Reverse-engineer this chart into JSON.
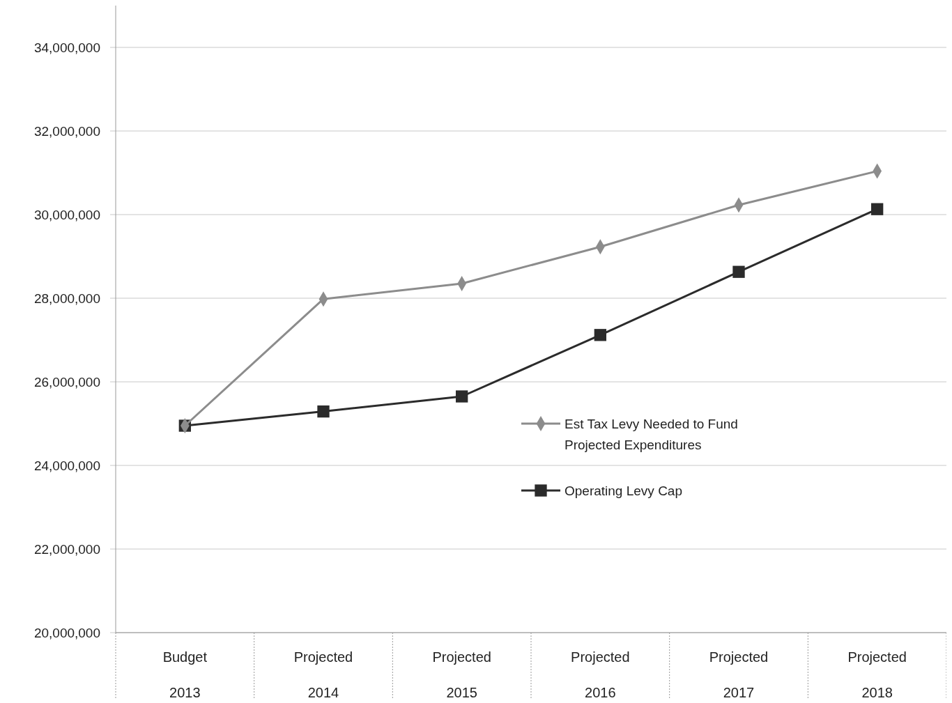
{
  "chart_data": {
    "type": "line",
    "categories": [
      "Budget 2013",
      "Projected 2014",
      "Projected 2015",
      "Projected 2016",
      "Projected 2017",
      "Projected 2018"
    ],
    "series": [
      {
        "name": "Est Tax Levy Needed  to Fund Projected Expenditures",
        "color": "#8c8c8c",
        "marker": "diamond",
        "values": [
          24950000,
          27980000,
          28350000,
          29230000,
          30230000,
          31040000
        ]
      },
      {
        "name": "Operating Levy Cap",
        "color": "#2b2b2b",
        "marker": "square",
        "values": [
          24950000,
          25290000,
          25650000,
          27120000,
          28630000,
          30130000
        ]
      }
    ],
    "ylim": [
      20000000,
      35000000
    ],
    "yticks": [
      {
        "value": 20000000,
        "label": "20,000,000"
      },
      {
        "value": 22000000,
        "label": "22,000,000"
      },
      {
        "value": 24000000,
        "label": "24,000,000"
      },
      {
        "value": 26000000,
        "label": "26,000,000"
      },
      {
        "value": 28000000,
        "label": "28,000,000"
      },
      {
        "value": 30000000,
        "label": "30,000,000"
      },
      {
        "value": 32000000,
        "label": "32,000,000"
      },
      {
        "value": 34000000,
        "label": "34,000,000"
      }
    ],
    "grid": "y",
    "legend": "center"
  }
}
